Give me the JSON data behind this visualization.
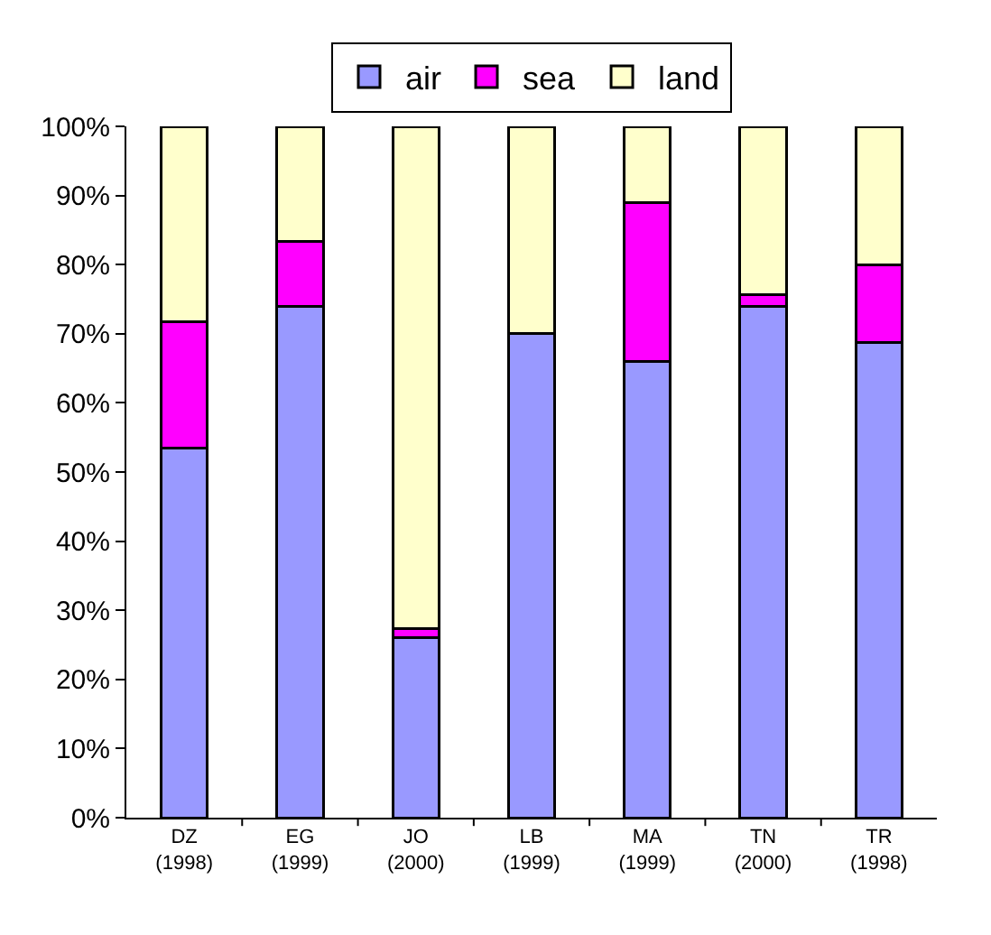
{
  "chart_data": {
    "type": "bar",
    "stacked": true,
    "categories": [
      "DZ\n(1998)",
      "EG\n(1999)",
      "JO\n(2000)",
      "LB\n(1999)",
      "MA\n(1999)",
      "TN\n(2000)",
      "TR\n(1998)"
    ],
    "series": [
      {
        "name": "air",
        "color": "#9999ff",
        "values": [
          53.5,
          74,
          26,
          70,
          66,
          74,
          68.7
        ]
      },
      {
        "name": "sea",
        "color": "#ff00ff",
        "values": [
          18.2,
          9.3,
          1.3,
          0,
          23,
          1.7,
          11.3
        ]
      },
      {
        "name": "land",
        "color": "#ffffcc",
        "values": [
          28.3,
          16.7,
          72.7,
          30,
          11,
          24.3,
          20
        ]
      }
    ],
    "ylim": [
      0,
      100
    ],
    "yticks": [
      {
        "value": 0,
        "label": "0%"
      },
      {
        "value": 10,
        "label": "10%"
      },
      {
        "value": 20,
        "label": "20%"
      },
      {
        "value": 30,
        "label": "30%"
      },
      {
        "value": 40,
        "label": "40%"
      },
      {
        "value": 50,
        "label": "50%"
      },
      {
        "value": 60,
        "label": "60%"
      },
      {
        "value": 70,
        "label": "70%"
      },
      {
        "value": 80,
        "label": "80%"
      },
      {
        "value": 90,
        "label": "90%"
      },
      {
        "value": 100,
        "label": "100%"
      }
    ],
    "grid": false,
    "legend": "top"
  }
}
